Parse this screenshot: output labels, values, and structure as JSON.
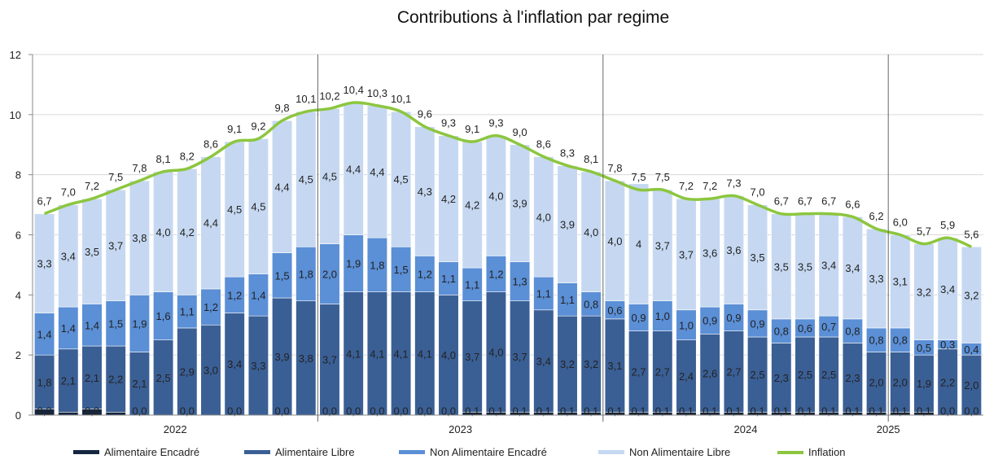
{
  "chart_data": {
    "type": "bar",
    "stacked": true,
    "title": "Contributions à l'inflation par regime",
    "xlabel": "",
    "ylabel": "",
    "ylim": [
      0,
      12
    ],
    "y_ticks": [
      "0",
      "2",
      "4",
      "6",
      "8",
      "10",
      "12"
    ],
    "year_labels": [
      {
        "label": "2022",
        "center_index": 6,
        "start_index": 0
      },
      {
        "label": "2023",
        "center_index": 18,
        "start_index": 12
      },
      {
        "label": "2024",
        "center_index": 30,
        "start_index": 24
      },
      {
        "label": "2025",
        "center_index": 36,
        "start_index": 36
      }
    ],
    "colors": {
      "alimentaire_encadre": "#15263f",
      "alimentaire_libre": "#3a5f95",
      "non_alimentaire_encadre": "#5b8fd6",
      "non_alimentaire_libre": "#c6d8f1",
      "inflation": "#8cc63f"
    },
    "series": [
      {
        "name": "Alimentaire Encadré",
        "values": [
          0.2,
          0.1,
          0.2,
          0.1,
          0.0,
          0.0,
          0.0,
          0.0,
          0.0,
          0.0,
          0.0,
          0.0,
          0.0,
          0.0,
          0.0,
          0.0,
          0.0,
          0.0,
          0.1,
          0.1,
          0.1,
          0.1,
          0.1,
          0.1,
          0.1,
          0.1,
          0.1,
          0.1,
          0.1,
          0.1,
          0.1,
          0.1,
          0.1,
          0.1,
          0.1,
          0.1,
          0.1,
          0.1,
          0.0,
          0.0
        ],
        "labels": [
          "0,2",
          "",
          "0,2",
          "",
          "0,0",
          "",
          "0,0",
          "",
          "0,0",
          "",
          "0,0",
          "",
          "0,0",
          "0,0",
          "0,0",
          "0,0",
          "0,0",
          "0,0",
          "0,1",
          "0,1",
          "0,1",
          "0,1",
          "0,1",
          "0,1",
          "0,1",
          "0,1",
          "0,1",
          "0,1",
          "0,1",
          "0,1",
          "0,1",
          "0,1",
          "0,1",
          "0,1",
          "0,1",
          "0,1",
          "0,1",
          "0,1",
          "0,0",
          "0,0"
        ]
      },
      {
        "name": "Alimentaire Libre",
        "values": [
          1.8,
          2.1,
          2.1,
          2.2,
          2.1,
          2.5,
          2.9,
          3.0,
          3.4,
          3.3,
          3.9,
          3.8,
          3.7,
          4.1,
          4.1,
          4.1,
          4.1,
          4.0,
          3.7,
          4.0,
          3.7,
          3.4,
          3.2,
          3.2,
          3.1,
          2.7,
          2.7,
          2.4,
          2.6,
          2.7,
          2.5,
          2.3,
          2.5,
          2.5,
          2.3,
          2.0,
          2.0,
          1.9,
          2.2,
          2.0
        ],
        "labels": [
          "1,8",
          "2,1",
          "2,1",
          "2,2",
          "2,1",
          "2,5",
          "2,9",
          "3,0",
          "3,4",
          "3,3",
          "3,9",
          "3,8",
          "3,7",
          "4,1",
          "4,1",
          "4,1",
          "4,1",
          "4,0",
          "3,7",
          "4,0",
          "3,7",
          "3,4",
          "3,2",
          "3,2",
          "3,1",
          "2,7",
          "2,7",
          "2,4",
          "2,6",
          "2,7",
          "2,5",
          "2,3",
          "2,5",
          "2,5",
          "2,3",
          "2,0",
          "2,0",
          "1,9",
          "2,2",
          "2,0"
        ]
      },
      {
        "name": "Non Alimentaire Encadré",
        "values": [
          1.4,
          1.4,
          1.4,
          1.5,
          1.9,
          1.6,
          1.1,
          1.2,
          1.2,
          1.4,
          1.5,
          1.8,
          2.0,
          1.9,
          1.8,
          1.5,
          1.2,
          1.1,
          1.1,
          1.2,
          1.3,
          1.1,
          1.1,
          0.8,
          0.6,
          0.9,
          1.0,
          1.0,
          0.9,
          0.9,
          0.9,
          0.8,
          0.6,
          0.7,
          0.8,
          0.8,
          0.8,
          0.5,
          0.3,
          0.4
        ],
        "labels": [
          "1,4",
          "1,4",
          "1,4",
          "1,5",
          "1,9",
          "1,6",
          "1,1",
          "1,2",
          "1,2",
          "1,4",
          "1,5",
          "1,8",
          "2,0",
          "1,9",
          "1,8",
          "1,5",
          "1,2",
          "1,1",
          "1,1",
          "1,2",
          "1,3",
          "1,1",
          "1,1",
          "0,8",
          "0,6",
          "0,9",
          "1,0",
          "1,0",
          "0,9",
          "0,9",
          "0,9",
          "0,8",
          "0,6",
          "0,7",
          "0,8",
          "0,8",
          "0,8",
          "0,5",
          "0,3",
          "0,4"
        ]
      },
      {
        "name": "Non Alimentaire Libre",
        "values": [
          3.3,
          3.4,
          3.5,
          3.7,
          3.8,
          4.0,
          4.2,
          4.4,
          4.5,
          4.5,
          4.4,
          4.5,
          4.5,
          4.4,
          4.4,
          4.5,
          4.3,
          4.2,
          4.2,
          4.0,
          3.9,
          4.0,
          3.9,
          4.0,
          4.0,
          4.0,
          3.7,
          3.7,
          3.6,
          3.6,
          3.5,
          3.5,
          3.5,
          3.4,
          3.4,
          3.3,
          3.1,
          3.2,
          3.4,
          3.2
        ],
        "labels": [
          "3,3",
          "3,4",
          "3,5",
          "3,7",
          "3,8",
          "4,0",
          "4,2",
          "4,4",
          "4,5",
          "4,5",
          "4,4",
          "4,5",
          "4,5",
          "4,4",
          "4,4",
          "4,5",
          "4,3",
          "4,2",
          "4,2",
          "4,0",
          "3,9",
          "4,0",
          "3,9",
          "4,0",
          "4,0",
          "4",
          "3,7",
          "3,7",
          "3,6",
          "3,6",
          "3,5",
          "3,5",
          "3,5",
          "3,4",
          "3,4",
          "3,3",
          "3,1",
          "3,2",
          "3,4",
          "3,2"
        ]
      },
      {
        "name": "Inflation",
        "type": "line",
        "values": [
          6.7,
          7.0,
          7.2,
          7.5,
          7.8,
          8.1,
          8.2,
          8.6,
          9.1,
          9.2,
          9.8,
          10.1,
          10.2,
          10.4,
          10.3,
          10.1,
          9.6,
          9.3,
          9.1,
          9.3,
          9.0,
          8.6,
          8.3,
          8.1,
          7.8,
          7.5,
          7.5,
          7.2,
          7.2,
          7.3,
          7.0,
          6.7,
          6.7,
          6.7,
          6.6,
          6.2,
          6.0,
          5.7,
          5.9,
          5.6
        ],
        "labels": [
          "6,7",
          "7,0",
          "7,2",
          "7,5",
          "7,8",
          "8,1",
          "8,2",
          "8,6",
          "9,1",
          "9,2",
          "9,8",
          "10,1",
          "10,2",
          "10,4",
          "10,3",
          "10,1",
          "9,6",
          "9,3",
          "9,1",
          "9,3",
          "9,0",
          "8,6",
          "8,3",
          "8,1",
          "7,8",
          "7,5",
          "7,5",
          "7,2",
          "7,2",
          "7,3",
          "7,0",
          "6,7",
          "6,7",
          "6,7",
          "6,6",
          "6,2",
          "6,0",
          "5,7",
          "5,9",
          "5,6"
        ]
      }
    ]
  },
  "legend": {
    "items": [
      {
        "label": "Alimentaire Encadré",
        "kind": "bar"
      },
      {
        "label": "Alimentaire Libre",
        "kind": "bar"
      },
      {
        "label": "Non Alimentaire Encadré",
        "kind": "bar"
      },
      {
        "label": "Non Alimentaire Libre",
        "kind": "bar"
      },
      {
        "label": "Inflation",
        "kind": "line"
      }
    ]
  }
}
